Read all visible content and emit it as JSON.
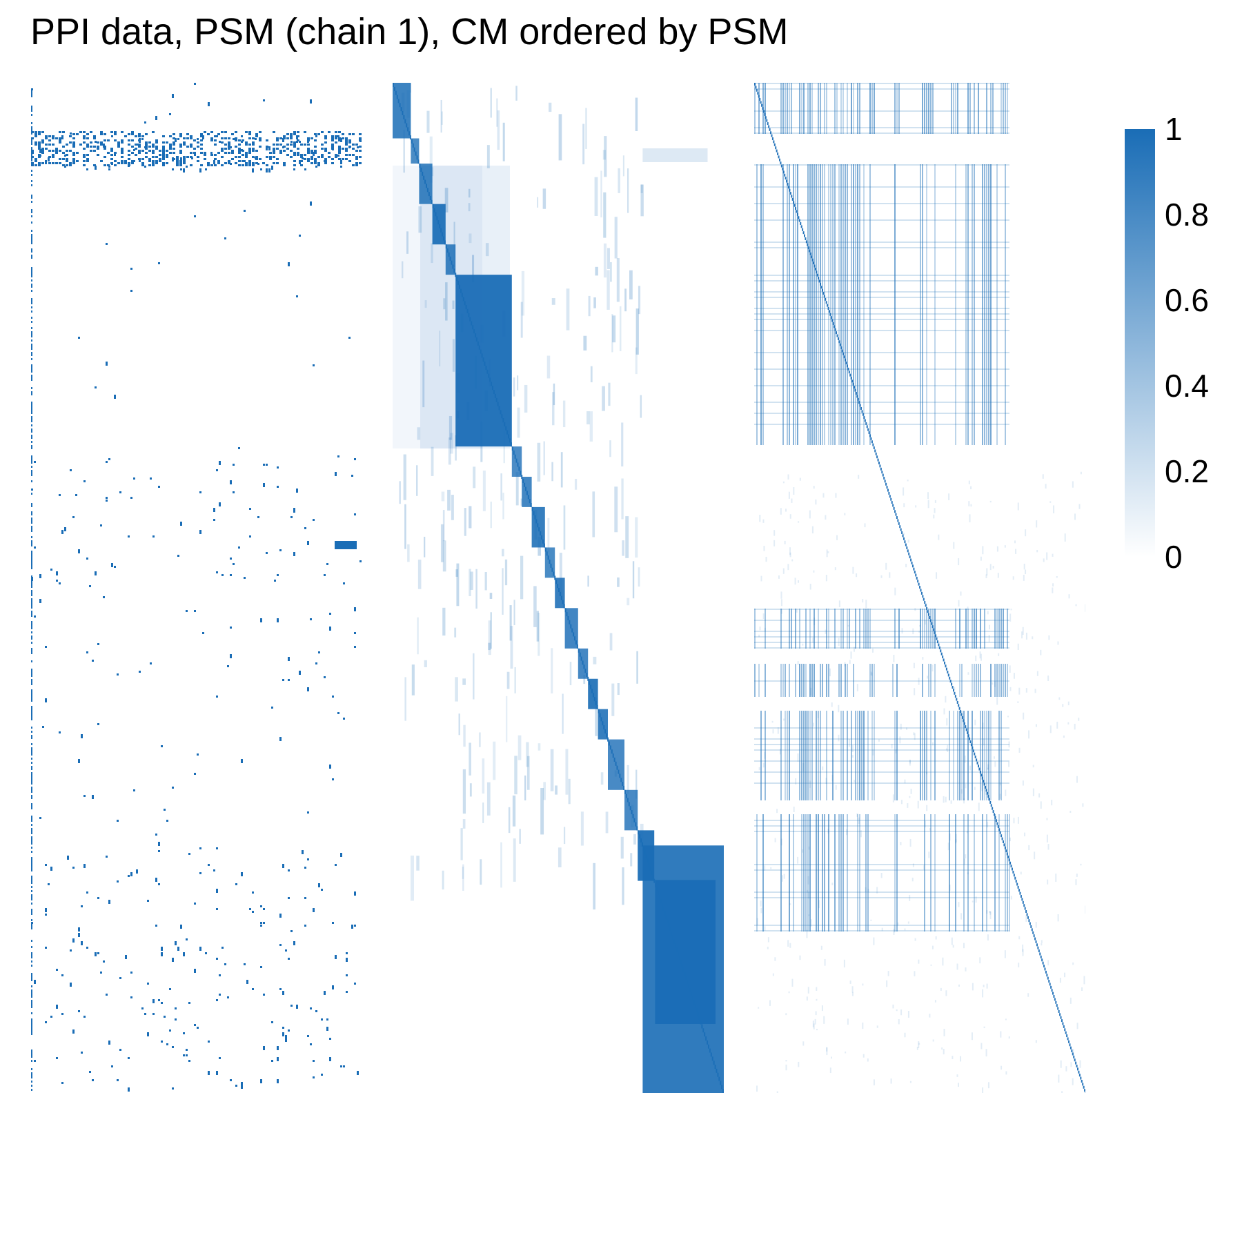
{
  "title": "PPI data, PSM (chain 1), CM ordered by PSM",
  "colors": {
    "high": "#1a6db6",
    "low": "#ffffff"
  },
  "chart_data": [
    {
      "type": "heatmap",
      "panel": "PPI data",
      "description_of_values": "binary adjacency matrix, rows ordered by PSM clustering",
      "value_range": [
        0,
        1
      ],
      "row_blocks": [
        0,
        0.05,
        0.09,
        0.35,
        0.5,
        0.72,
        0.78,
        1.0
      ]
    },
    {
      "type": "heatmap",
      "panel": "PSM",
      "value_range": [
        0,
        1
      ],
      "cluster_boundaries": [
        0,
        0.055,
        0.08,
        0.12,
        0.16,
        0.19,
        0.36,
        0.39,
        0.42,
        0.46,
        0.49,
        0.52,
        0.56,
        0.59,
        0.62,
        0.65,
        0.7,
        0.74,
        0.79,
        0.83,
        0.9,
        1.0
      ],
      "large_block": {
        "start": 0.755,
        "end": 1.0,
        "value": 0.9
      }
    },
    {
      "type": "heatmap",
      "panel": "CM",
      "value_range": [
        0,
        1
      ],
      "active_columns": [
        0.0,
        0.36
      ],
      "active_rows": [
        0.0,
        0.36
      ]
    }
  ],
  "legend": {
    "type": "colorbar",
    "ticks": [
      {
        "label": "1",
        "value": 1.0
      },
      {
        "label": "0.8",
        "value": 0.8
      },
      {
        "label": "0.6",
        "value": 0.6
      },
      {
        "label": "0.4",
        "value": 0.4
      },
      {
        "label": "0.2",
        "value": 0.2
      },
      {
        "label": "0",
        "value": 0.0
      }
    ]
  }
}
